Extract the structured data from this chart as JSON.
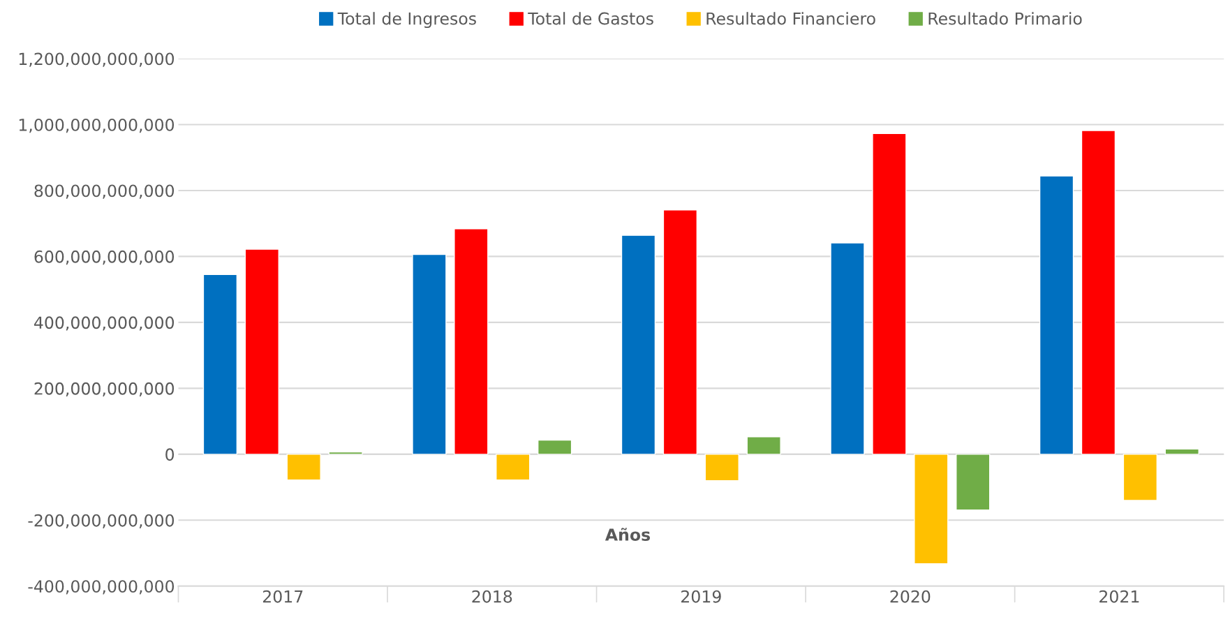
{
  "chart_data": {
    "type": "bar",
    "xlabel": "Años",
    "categories": [
      "2017",
      "2018",
      "2019",
      "2020",
      "2021"
    ],
    "series": [
      {
        "name": "Total de Ingresos",
        "color": "#0070c0",
        "values": [
          545000000000,
          606000000000,
          664000000000,
          641000000000,
          844000000000
        ]
      },
      {
        "name": "Total de Gastos",
        "color": "#ff0000",
        "values": [
          622000000000,
          684000000000,
          741000000000,
          973000000000,
          982000000000
        ]
      },
      {
        "name": "Resultado Financiero",
        "color": "#ffc000",
        "values": [
          -78000000000,
          -78000000000,
          -80000000000,
          -332000000000,
          -140000000000
        ]
      },
      {
        "name": "Resultado Primario",
        "color": "#70ad47",
        "values": [
          7000000000,
          43000000000,
          53000000000,
          -169000000000,
          16000000000
        ]
      }
    ],
    "ylim": [
      -400000000000,
      1200000000000
    ],
    "yticks": [
      {
        "value": -400000000000,
        "label": "-400,000,000,000"
      },
      {
        "value": -200000000000,
        "label": "-200,000,000,000"
      },
      0,
      {
        "value": 200000000000,
        "label": "200,000,000,000"
      },
      {
        "value": 400000000000,
        "label": "400,000,000,000"
      },
      {
        "value": 600000000000,
        "label": "600,000,000,000"
      },
      {
        "value": 800000000000,
        "label": "800,000,000,000"
      },
      {
        "value": 1000000000000,
        "label": "1,000,000,000,000"
      },
      {
        "value": 1200000000000,
        "label": "1,200,000,000,000"
      }
    ],
    "grid": "y",
    "legend": "top"
  }
}
